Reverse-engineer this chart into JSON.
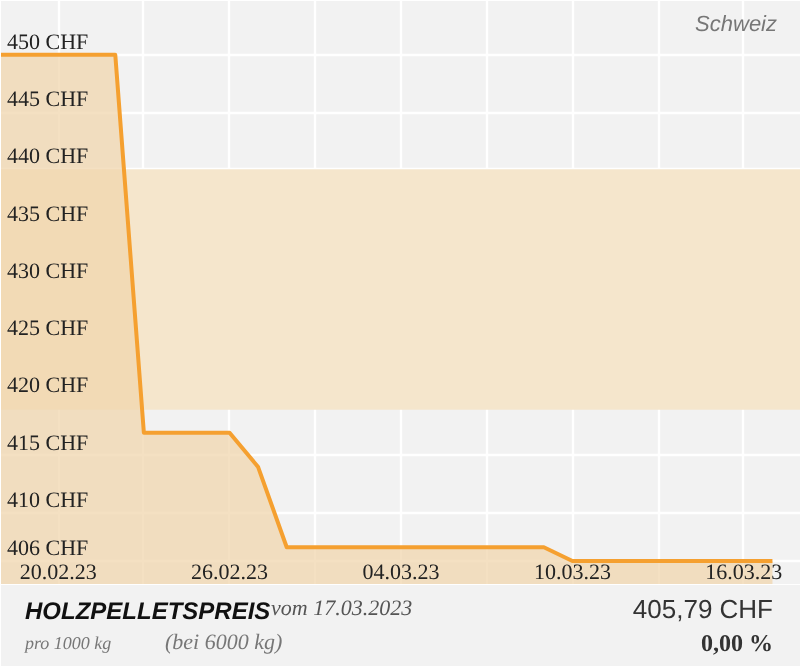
{
  "chart_data": {
    "type": "area",
    "title": "HOLZPELLETSPREIS",
    "subtitle": "Schweiz",
    "annotations": [
      "vom 17.03.2023",
      "pro 1000 kg",
      "(bei 6000 kg)",
      "405,79 CHF",
      "0,00 %"
    ],
    "x": [
      "2023-02-18",
      "2023-02-22",
      "2023-02-23",
      "2023-02-26",
      "2023-02-27",
      "2023-02-28",
      "2023-03-09",
      "2023-03-10",
      "2023-03-17"
    ],
    "series": [
      {
        "color": "#f5a030",
        "values": [
          450,
          450,
          417,
          417,
          414,
          407,
          407,
          405.79,
          405.79
        ]
      }
    ],
    "xlim": [
      "2023-02-18",
      "2023-03-18"
    ],
    "xticks": [
      {
        "value": "2023-02-20",
        "label": "20.02.23"
      },
      {
        "value": "2023-02-23",
        "label": null
      },
      {
        "value": "2023-02-26",
        "label": "26.02.23"
      },
      {
        "value": "2023-03-01",
        "label": null
      },
      {
        "value": "2023-03-04",
        "label": "04.03.23"
      },
      {
        "value": "2023-03-07",
        "label": null
      },
      {
        "value": "2023-03-10",
        "label": "10.03.23"
      },
      {
        "value": "2023-03-13",
        "label": null
      },
      {
        "value": "2023-03-16",
        "label": "16.03.23"
      }
    ],
    "ylim": [
      403.7,
      454.7
    ],
    "yticks": [
      {
        "value": 405.79,
        "label": "406 CHF"
      },
      {
        "value": 410,
        "label": "410 CHF"
      },
      {
        "value": 415,
        "label": "415 CHF"
      },
      {
        "value": 420,
        "label": "420 CHF"
      },
      {
        "value": 425,
        "label": "425 CHF"
      },
      {
        "value": 430,
        "label": "430 CHF"
      },
      {
        "value": 435,
        "label": "435 CHF"
      },
      {
        "value": 440,
        "label": "440 CHF"
      },
      {
        "value": 445,
        "label": "445 CHF"
      },
      {
        "value": 450,
        "label": "450 CHF"
      }
    ],
    "bands": [
      {
        "axis": "y",
        "from": 419,
        "to": 440,
        "color": "#f5e6cc"
      }
    ],
    "grid": true
  }
}
